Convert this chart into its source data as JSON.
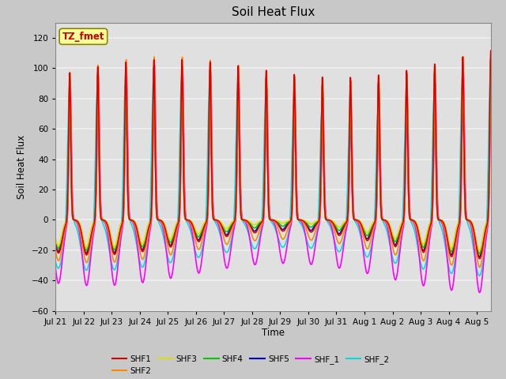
{
  "title": "Soil Heat Flux",
  "xlabel": "Time",
  "ylabel": "Soil Heat Flux",
  "ylim": [
    -60,
    130
  ],
  "yticks": [
    -60,
    -40,
    -20,
    0,
    20,
    40,
    60,
    80,
    100,
    120
  ],
  "num_days": 15.5,
  "time_step": 0.002,
  "series_order": [
    "SHF_2",
    "SHF_1",
    "SHF5",
    "SHF4",
    "SHF3",
    "SHF2",
    "SHF1"
  ],
  "series": {
    "SHF1": {
      "color": "#dd0000",
      "lw": 1.2
    },
    "SHF2": {
      "color": "#ff8800",
      "lw": 1.2
    },
    "SHF3": {
      "color": "#dddd00",
      "lw": 1.2
    },
    "SHF4": {
      "color": "#00cc00",
      "lw": 1.2
    },
    "SHF5": {
      "color": "#0000cc",
      "lw": 1.2
    },
    "SHF_1": {
      "color": "#ff00ff",
      "lw": 1.2
    },
    "SHF_2": {
      "color": "#00dddd",
      "lw": 1.2
    }
  },
  "legend_series": [
    "SHF1",
    "SHF2",
    "SHF3",
    "SHF4",
    "SHF5",
    "SHF_1",
    "SHF_2"
  ],
  "xtick_labels": [
    "Jul 21",
    "Jul 22",
    "Jul 23",
    "Jul 24",
    "Jul 25",
    "Jul 26",
    "Jul 27",
    "Jul 28",
    "Jul 29",
    "Jul 30",
    "Jul 31",
    "Aug 1",
    "Aug 2",
    "Aug 3",
    "Aug 4",
    "Aug 5"
  ],
  "annotation_text": "TZ_fmet",
  "annotation_color": "#cc0000",
  "annotation_bg": "#ffff99",
  "annotation_border": "#888800",
  "fig_bg_color": "#c8c8c8",
  "plot_bg_color": "#e0e0e0",
  "grid_color": "#f0f0f0",
  "spine_color": "#888888"
}
